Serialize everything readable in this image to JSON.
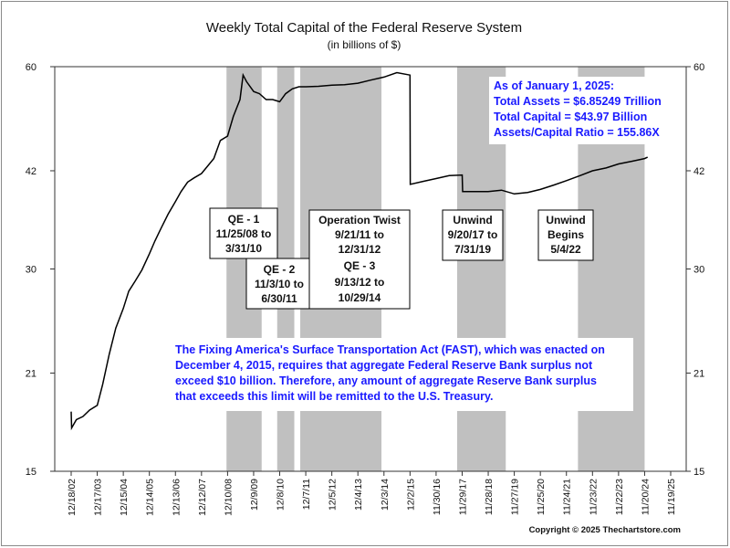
{
  "chart_data": {
    "type": "line",
    "title": "Weekly Total Capital of the Federal Reserve System",
    "subtitle": "(in billions of $)",
    "ylim": [
      15,
      60
    ],
    "yticks": [
      "15",
      "21",
      "30",
      "42",
      "60"
    ],
    "y_scale": "log",
    "right_axis_mirrors_left": true,
    "grid": false,
    "xticks": [
      "12/18/02",
      "12/17/03",
      "12/15/04",
      "12/14/05",
      "12/13/06",
      "12/12/07",
      "12/10/08",
      "12/9/09",
      "12/8/10",
      "12/7/11",
      "12/5/12",
      "12/4/13",
      "12/3/14",
      "12/2/15",
      "11/30/16",
      "11/29/17",
      "11/28/18",
      "11/27/19",
      "11/25/20",
      "11/24/21",
      "11/23/22",
      "11/22/23",
      "11/20/24",
      "11/19/25"
    ],
    "shaded_periods": [
      {
        "start": "11/25/08",
        "end": "3/31/10"
      },
      {
        "start": "11/3/10",
        "end": "6/30/11"
      },
      {
        "start": "9/21/11",
        "end": "10/29/14"
      },
      {
        "start": "9/20/17",
        "end": "7/31/19"
      },
      {
        "start": "5/4/22",
        "end": "11/20/24"
      }
    ],
    "series": [
      {
        "x": [
          "12/18/02",
          "12/25/02",
          "3/1/03",
          "6/1/03",
          "9/1/03",
          "12/17/03",
          "3/1/04",
          "6/1/04",
          "9/1/04",
          "12/15/04",
          "3/1/05",
          "6/1/05",
          "9/1/05",
          "12/14/05",
          "3/1/06",
          "6/1/06",
          "9/1/06",
          "12/13/06",
          "3/1/07",
          "6/1/07",
          "9/1/07",
          "12/12/07",
          "3/1/08",
          "6/1/08",
          "9/1/08",
          "12/10/08",
          "3/1/09",
          "6/1/09",
          "7/15/09",
          "9/1/09",
          "12/9/09",
          "3/1/10",
          "6/1/10",
          "9/1/10",
          "12/8/10",
          "3/1/11",
          "6/1/11",
          "9/1/11",
          "12/7/11",
          "6/1/12",
          "12/5/12",
          "6/1/13",
          "12/4/13",
          "6/1/14",
          "12/3/14",
          "6/1/15",
          "12/2/15",
          "12/5/15",
          "6/1/16",
          "11/30/16",
          "6/1/17",
          "11/29/17",
          "12/6/17",
          "6/1/18",
          "11/28/18",
          "6/1/19",
          "11/27/19",
          "6/1/20",
          "11/25/20",
          "6/1/21",
          "11/24/21",
          "6/1/22",
          "11/23/22",
          "6/1/23",
          "11/22/23",
          "6/1/24",
          "11/20/24",
          "1/1/25"
        ],
        "y": [
          18.4,
          17.4,
          17.9,
          18.1,
          18.5,
          18.8,
          20.2,
          22.4,
          24.5,
          26.2,
          27.8,
          28.8,
          29.9,
          31.6,
          33.0,
          34.6,
          36.2,
          37.8,
          39.1,
          40.4,
          41.0,
          41.6,
          42.6,
          43.8,
          46.6,
          47.3,
          50.6,
          53.6,
          58.3,
          57.0,
          55.1,
          54.7,
          53.6,
          53.6,
          53.2,
          54.7,
          55.6,
          56.0,
          56.0,
          56.1,
          56.3,
          56.4,
          56.7,
          57.3,
          57.9,
          58.8,
          58.3,
          40.1,
          40.5,
          40.9,
          41.3,
          41.4,
          39.1,
          39.1,
          39.1,
          39.3,
          38.8,
          39.0,
          39.4,
          40.0,
          40.6,
          41.3,
          42.0,
          42.4,
          43.0,
          43.4,
          43.8,
          44.0
        ]
      }
    ]
  },
  "annotations": {
    "qe1": [
      "QE - 1",
      "11/25/08 to",
      "3/31/10"
    ],
    "qe2": [
      "QE - 2",
      "11/3/10 to",
      "6/30/11"
    ],
    "twist": [
      "Operation Twist",
      "9/21/11 to",
      "12/31/12",
      "QE - 3",
      "9/13/12 to",
      "10/29/14"
    ],
    "unwind1": [
      "Unwind",
      "9/20/17 to",
      "7/31/19"
    ],
    "unwind2": [
      "Unwind",
      "Begins",
      "5/4/22"
    ],
    "asof": [
      "As of January 1, 2025:",
      "Total Assets = $6.85249 Trillion",
      "Total Capital  = $43.97 Billion",
      "Assets/Capital Ratio = 155.86X"
    ],
    "fast": [
      "The Fixing America's Surface Transportation Act (FAST), which was enacted on",
      "December 4, 2015, requires that aggregate Federal Reserve Bank surplus not",
      "exceed $10 billion.  Therefore, any amount of aggregate Reserve Bank surplus",
      "that exceeds this limit will be remitted to the U.S. Treasury."
    ]
  },
  "copyright": "Copyright © 2025 Thechartstore.com",
  "colors": {
    "line": "#000000",
    "shade": "#c0c0c0",
    "annotation_blue": "#1a1aff"
  }
}
